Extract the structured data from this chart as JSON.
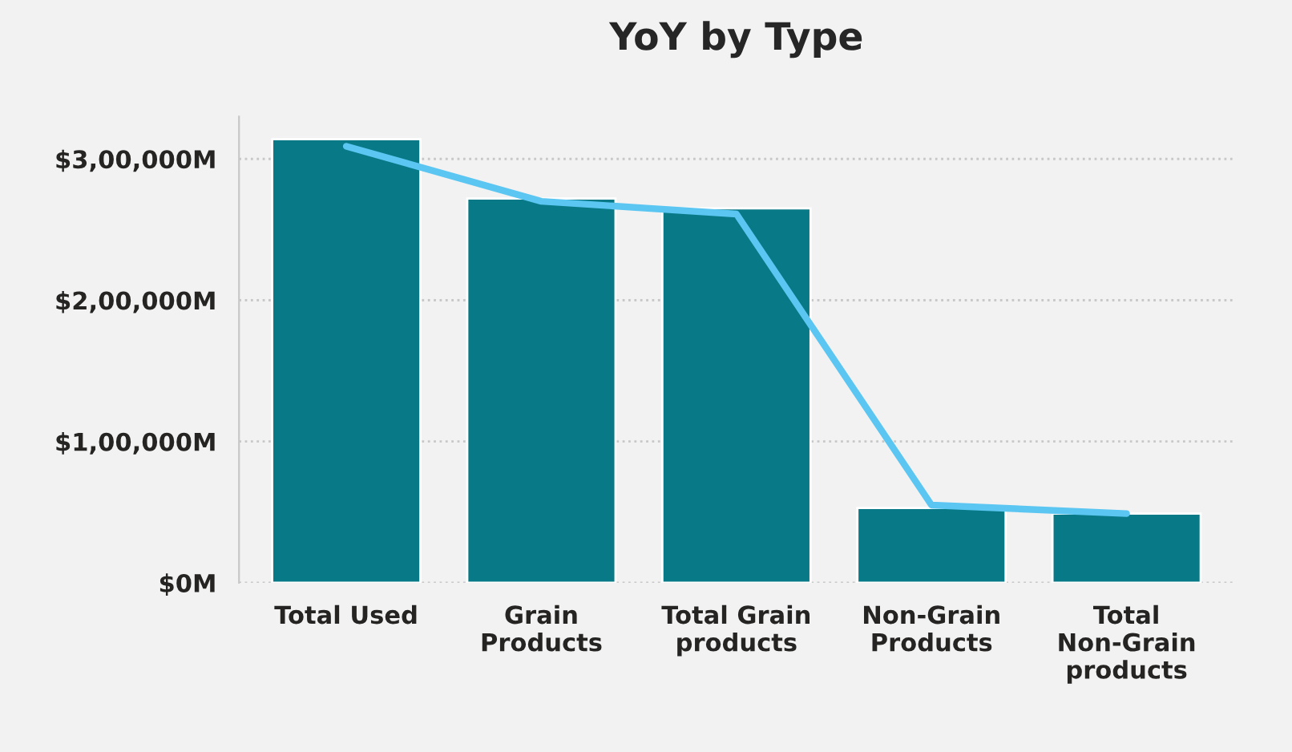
{
  "chart_data": {
    "type": "bar",
    "title": "YoY by Type",
    "categories": [
      "Total Used",
      "Grain\nProducts",
      "Total Grain\nproducts",
      "Non-Grain\nProducts",
      "Total\nNon-Grain\nproducts"
    ],
    "series": [
      {
        "color": "#087a87",
        "values": [
          314000,
          272000,
          265000,
          53000,
          49000
        ]
      },
      {
        "type": "line",
        "color": "#5cc6f2",
        "values": [
          309000,
          270000,
          261000,
          55000,
          49000
        ]
      }
    ],
    "ylim": [
      0,
      330000
    ],
    "yticks": [
      {
        "value": 0,
        "label": "$0M"
      },
      {
        "value": 100000,
        "label": "$1,00,000M"
      },
      {
        "value": 200000,
        "label": "$2,00,000M"
      },
      {
        "value": 300000,
        "label": "$3,00,000M"
      }
    ],
    "grid": "y",
    "marker": "none",
    "line_style": "solid"
  }
}
